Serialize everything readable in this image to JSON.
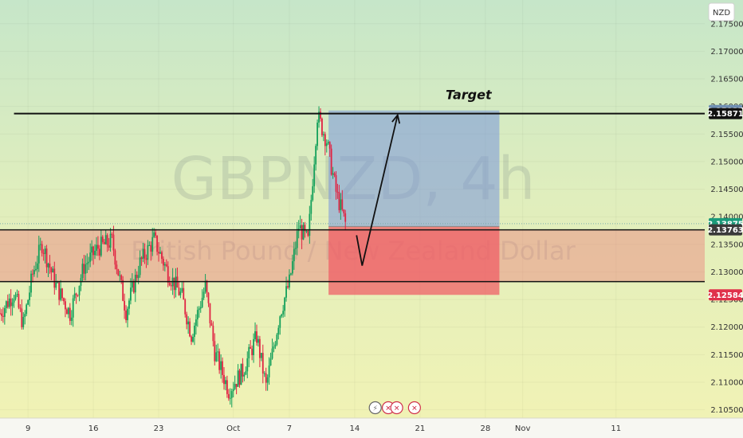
{
  "watermark": {
    "symbol": "GBPNZD, 4h",
    "description": "British Pound / New Zealand Dollar"
  },
  "currency_button": "NZD",
  "annotation": {
    "target_label": "Target"
  },
  "price_tags": [
    {
      "name": "target-level-tag",
      "value": "2.15927",
      "price": 2.15927,
      "color": "#6f8fb4"
    },
    {
      "name": "resistance-line-tag",
      "value": "2.15871",
      "price": 2.15871,
      "color": "#111111"
    },
    {
      "name": "last-price-tag",
      "value": "2.13875",
      "price": 2.13875,
      "color": "#1b9a7a"
    },
    {
      "name": "support-top-tag",
      "value": "2.13763",
      "price": 2.13763,
      "color": "#3a3a3a"
    },
    {
      "name": "stop-level-tag",
      "value": "2.12584",
      "price": 2.12584,
      "color": "#e0314b"
    }
  ],
  "event_icons": [
    {
      "name": "lightning-icon",
      "x": 40.2,
      "glyph": "⚡",
      "color": "#666666"
    },
    {
      "name": "uk-flag-icon",
      "x": 41.6,
      "glyph": "✕",
      "color": "#d0304a"
    },
    {
      "name": "uk-flag-icon",
      "x": 42.5,
      "glyph": "✕",
      "color": "#d0304a"
    },
    {
      "name": "uk-flag-icon",
      "x": 44.4,
      "glyph": "✕",
      "color": "#d0304a"
    }
  ],
  "chart_data": {
    "type": "candlestick",
    "symbol": "GBPNZD",
    "timeframe": "4h",
    "x_axis": {
      "unit": "days since Sep 6",
      "range": [
        0,
        75.5
      ],
      "ticks": [
        {
          "label": "9",
          "value": 3
        },
        {
          "label": "16",
          "value": 10
        },
        {
          "label": "23",
          "value": 17
        },
        {
          "label": "Oct",
          "value": 25
        },
        {
          "label": "7",
          "value": 31
        },
        {
          "label": "14",
          "value": 38
        },
        {
          "label": "21",
          "value": 45
        },
        {
          "label": "28",
          "value": 52
        },
        {
          "label": "Nov",
          "value": 56
        },
        {
          "label": "11",
          "value": 66
        }
      ]
    },
    "y_axis": {
      "range": [
        2.1035,
        2.1793
      ],
      "ticks": [
        2.105,
        2.11,
        2.115,
        2.12,
        2.125,
        2.13,
        2.135,
        2.14,
        2.145,
        2.15,
        2.155,
        2.16,
        2.165,
        2.17,
        2.175
      ]
    },
    "lines": {
      "resistance": 2.15871,
      "support_top": 2.13763,
      "support_bottom": 2.12825,
      "dotted_last": 2.13875
    },
    "zones": {
      "support_band": [
        2.12825,
        2.13763
      ],
      "long_position": {
        "x_start": 35.2,
        "x_end": 53.5,
        "entry": 2.13825,
        "target": 2.15927,
        "stop": 2.12584
      }
    },
    "projection_path": [
      {
        "x": 38.2,
        "y": 2.13664
      },
      {
        "x": 38.8,
        "y": 2.13114
      },
      {
        "x": 42.6,
        "y": 2.15844
      }
    ],
    "target_label_at": {
      "x": 50.2,
      "y": 2.16135
    },
    "anchors": [
      {
        "x": 0,
        "y": 2.1225
      },
      {
        "x": 1.5,
        "y": 2.1262
      },
      {
        "x": 2.5,
        "y": 2.1205
      },
      {
        "x": 3.5,
        "y": 2.1296
      },
      {
        "x": 4.5,
        "y": 2.1351
      },
      {
        "x": 6,
        "y": 2.1275
      },
      {
        "x": 7.5,
        "y": 2.1225
      },
      {
        "x": 9,
        "y": 2.131
      },
      {
        "x": 10.5,
        "y": 2.1344
      },
      {
        "x": 12,
        "y": 2.1356
      },
      {
        "x": 13.5,
        "y": 2.1229
      },
      {
        "x": 15,
        "y": 2.1316
      },
      {
        "x": 16.5,
        "y": 2.1359
      },
      {
        "x": 18,
        "y": 2.1298
      },
      {
        "x": 19.5,
        "y": 2.1255
      },
      {
        "x": 20.5,
        "y": 2.1186
      },
      {
        "x": 22,
        "y": 2.1274
      },
      {
        "x": 23,
        "y": 2.1155
      },
      {
        "x": 24.5,
        "y": 2.1085
      },
      {
        "x": 26,
        "y": 2.112
      },
      {
        "x": 27.5,
        "y": 2.1183
      },
      {
        "x": 28.5,
        "y": 2.1092
      },
      {
        "x": 30,
        "y": 2.1225
      },
      {
        "x": 31,
        "y": 2.1281
      },
      {
        "x": 32,
        "y": 2.1382
      },
      {
        "x": 33,
        "y": 2.1355
      },
      {
        "x": 34,
        "y": 2.1584
      },
      {
        "x": 35,
        "y": 2.1538
      },
      {
        "x": 36,
        "y": 2.1445
      },
      {
        "x": 37,
        "y": 2.1388
      }
    ]
  }
}
